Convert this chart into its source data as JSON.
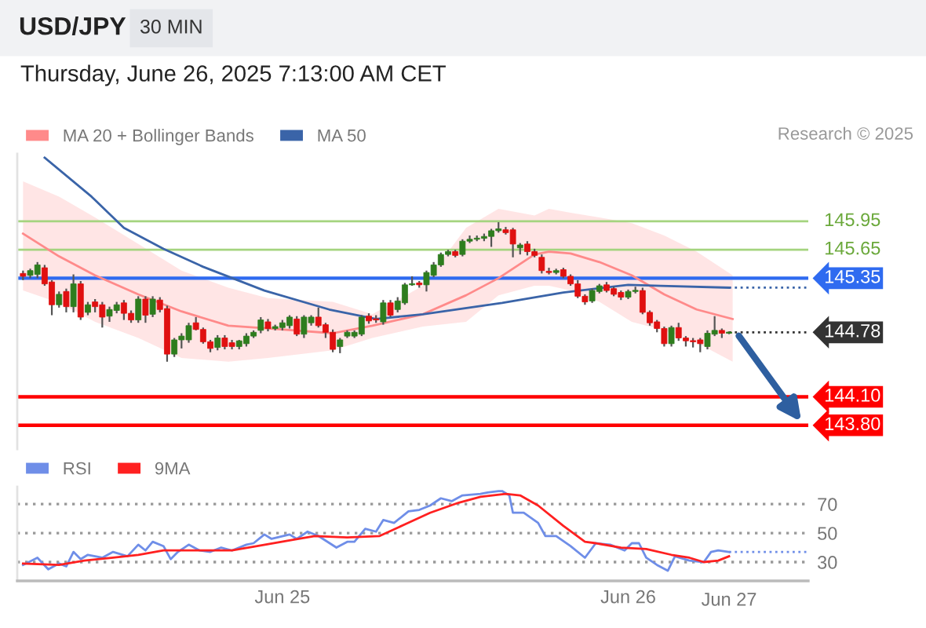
{
  "chart_data": [
    {
      "type": "candlestick",
      "title": "USD/JPY",
      "subtitle": "30 MIN",
      "annotations": [
        "Thursday, June 26, 2025 7:13:00 AM CET",
        "Research © 2025"
      ],
      "x": [
        "2025-06-24T06:00",
        "2025-06-24T06:30",
        "2025-06-24T07:00",
        "2025-06-24T07:30",
        "2025-06-24T08:00",
        "2025-06-24T08:30",
        "2025-06-24T09:00",
        "2025-06-24T09:30",
        "2025-06-24T10:00",
        "2025-06-24T10:30",
        "2025-06-24T11:00",
        "2025-06-24T11:30",
        "2025-06-24T12:00",
        "2025-06-24T12:30",
        "2025-06-24T13:00",
        "2025-06-24T13:30",
        "2025-06-24T14:00",
        "2025-06-24T14:30",
        "2025-06-24T15:00",
        "2025-06-24T15:30",
        "2025-06-24T16:00",
        "2025-06-24T16:30",
        "2025-06-24T17:00",
        "2025-06-24T17:30",
        "2025-06-24T18:00",
        "2025-06-24T18:30",
        "2025-06-24T19:00",
        "2025-06-24T19:30",
        "2025-06-24T20:00",
        "2025-06-24T20:30",
        "2025-06-24T21:00",
        "2025-06-24T21:30",
        "2025-06-24T22:00",
        "2025-06-24T22:30",
        "2025-06-24T23:00",
        "2025-06-24T23:30",
        "2025-06-25T00:00",
        "2025-06-25T00:30",
        "2025-06-25T01:00",
        "2025-06-25T01:30",
        "2025-06-25T02:00",
        "2025-06-25T02:30",
        "2025-06-25T03:00",
        "2025-06-25T03:30",
        "2025-06-25T04:00",
        "2025-06-25T04:30",
        "2025-06-25T05:00",
        "2025-06-25T05:30",
        "2025-06-25T06:00",
        "2025-06-25T06:30",
        "2025-06-25T07:00",
        "2025-06-25T07:30",
        "2025-06-25T08:00",
        "2025-06-25T08:30",
        "2025-06-25T09:00",
        "2025-06-25T09:30",
        "2025-06-25T10:00",
        "2025-06-25T10:30",
        "2025-06-25T11:00",
        "2025-06-25T11:30",
        "2025-06-25T12:00",
        "2025-06-25T12:30",
        "2025-06-25T13:00",
        "2025-06-25T13:30",
        "2025-06-25T14:00",
        "2025-06-25T14:30",
        "2025-06-25T15:00",
        "2025-06-25T15:30",
        "2025-06-25T16:00",
        "2025-06-25T16:30",
        "2025-06-25T17:00",
        "2025-06-25T17:30",
        "2025-06-25T18:00",
        "2025-06-25T18:30",
        "2025-06-25T19:00",
        "2025-06-25T19:30",
        "2025-06-25T20:00",
        "2025-06-25T20:30",
        "2025-06-25T21:00",
        "2025-06-25T21:30",
        "2025-06-25T22:00",
        "2025-06-25T22:30",
        "2025-06-25T23:00",
        "2025-06-25T23:30",
        "2025-06-26T00:00",
        "2025-06-26T00:30",
        "2025-06-26T01:00",
        "2025-06-26T01:30",
        "2025-06-26T02:00",
        "2025-06-26T02:30",
        "2025-06-26T03:00",
        "2025-06-26T03:30",
        "2025-06-26T04:00",
        "2025-06-26T04:30",
        "2025-06-26T05:00",
        "2025-06-26T05:30",
        "2025-06-26T06:00",
        "2025-06-26T06:30",
        "2025-06-26T07:00"
      ],
      "ohlc": [
        [
          145.4,
          145.43,
          145.33,
          145.37
        ],
        [
          145.38,
          145.45,
          145.35,
          145.43
        ],
        [
          145.39,
          145.52,
          145.35,
          145.49
        ],
        [
          145.46,
          145.49,
          145.27,
          145.29
        ],
        [
          145.31,
          145.33,
          144.96,
          145.07
        ],
        [
          145.07,
          145.21,
          145.04,
          145.18
        ],
        [
          145.21,
          145.24,
          144.99,
          145.05
        ],
        [
          145.05,
          145.39,
          144.99,
          145.29
        ],
        [
          145.29,
          145.32,
          144.91,
          144.94
        ],
        [
          144.99,
          145.1,
          144.96,
          145.07
        ],
        [
          145.1,
          145.13,
          144.99,
          145.05
        ],
        [
          145.07,
          145.1,
          144.83,
          144.94
        ],
        [
          144.95,
          145.05,
          144.89,
          145.02
        ],
        [
          145.01,
          145.1,
          144.98,
          145.07
        ],
        [
          145.09,
          145.12,
          144.91,
          144.98
        ],
        [
          144.98,
          145.01,
          144.88,
          144.91
        ],
        [
          144.91,
          145.16,
          144.88,
          145.13
        ],
        [
          145.13,
          145.16,
          144.88,
          144.96
        ],
        [
          144.97,
          145.16,
          144.94,
          145.13
        ],
        [
          145.12,
          145.15,
          144.99,
          145.02
        ],
        [
          145.03,
          145.06,
          144.47,
          144.55
        ],
        [
          144.55,
          144.72,
          144.52,
          144.7
        ],
        [
          144.7,
          144.77,
          144.61,
          144.74
        ],
        [
          144.7,
          144.88,
          144.67,
          144.85
        ],
        [
          144.88,
          144.94,
          144.8,
          144.81
        ],
        [
          144.81,
          144.83,
          144.66,
          144.68
        ],
        [
          144.68,
          144.7,
          144.57,
          144.61
        ],
        [
          144.62,
          144.75,
          144.59,
          144.72
        ],
        [
          144.72,
          144.75,
          144.6,
          144.63
        ],
        [
          144.67,
          144.7,
          144.6,
          144.63
        ],
        [
          144.63,
          144.7,
          144.6,
          144.69
        ],
        [
          144.66,
          144.77,
          144.63,
          144.74
        ],
        [
          144.74,
          144.8,
          144.72,
          144.78
        ],
        [
          144.8,
          144.94,
          144.77,
          144.91
        ],
        [
          144.89,
          144.92,
          144.79,
          144.82
        ],
        [
          144.82,
          144.86,
          144.8,
          144.84
        ],
        [
          144.83,
          144.91,
          144.8,
          144.88
        ],
        [
          144.85,
          144.96,
          144.82,
          144.94
        ],
        [
          144.92,
          144.95,
          144.74,
          144.76
        ],
        [
          144.76,
          144.96,
          144.72,
          144.94
        ],
        [
          144.88,
          144.96,
          144.85,
          144.94
        ],
        [
          144.94,
          145.04,
          144.83,
          144.85
        ],
        [
          144.86,
          144.88,
          144.72,
          144.78
        ],
        [
          144.78,
          144.81,
          144.57,
          144.6
        ],
        [
          144.63,
          144.72,
          144.56,
          144.7
        ],
        [
          144.74,
          144.8,
          144.72,
          144.78
        ],
        [
          144.74,
          144.8,
          144.72,
          144.78
        ],
        [
          144.76,
          144.96,
          144.74,
          144.94
        ],
        [
          144.95,
          144.98,
          144.87,
          144.9
        ],
        [
          144.92,
          144.96,
          144.88,
          144.91
        ],
        [
          144.89,
          145.12,
          144.86,
          145.09
        ],
        [
          145.09,
          145.12,
          144.94,
          144.96
        ],
        [
          145.02,
          145.15,
          144.99,
          145.11
        ],
        [
          145.09,
          145.3,
          145.07,
          145.28
        ],
        [
          145.28,
          145.37,
          145.27,
          145.29
        ],
        [
          145.3,
          145.32,
          145.25,
          145.28
        ],
        [
          145.28,
          145.43,
          145.21,
          145.41
        ],
        [
          145.38,
          145.52,
          145.36,
          145.49
        ],
        [
          145.49,
          145.62,
          145.47,
          145.6
        ],
        [
          145.6,
          145.65,
          145.58,
          145.63
        ],
        [
          145.63,
          145.65,
          145.57,
          145.59
        ],
        [
          145.6,
          145.76,
          145.58,
          145.74
        ],
        [
          145.74,
          145.8,
          145.72,
          145.76
        ],
        [
          145.76,
          145.8,
          145.74,
          145.77
        ],
        [
          145.77,
          145.82,
          145.74,
          145.79
        ],
        [
          145.79,
          145.87,
          145.68,
          145.85
        ],
        [
          145.85,
          145.94,
          145.83,
          145.87
        ],
        [
          145.86,
          145.89,
          145.81,
          145.83
        ],
        [
          145.86,
          145.88,
          145.57,
          145.71
        ],
        [
          145.67,
          145.72,
          145.6,
          145.7
        ],
        [
          145.71,
          145.74,
          145.59,
          145.63
        ],
        [
          145.63,
          145.66,
          145.57,
          145.59
        ],
        [
          145.57,
          145.6,
          145.4,
          145.43
        ],
        [
          145.42,
          145.46,
          145.39,
          145.41
        ],
        [
          145.41,
          145.45,
          145.39,
          145.43
        ],
        [
          145.44,
          145.46,
          145.35,
          145.37
        ],
        [
          145.37,
          145.39,
          145.27,
          145.29
        ],
        [
          145.29,
          145.33,
          145.14,
          145.16
        ],
        [
          145.16,
          145.18,
          145.07,
          145.1
        ],
        [
          145.11,
          145.24,
          145.09,
          145.22
        ],
        [
          145.21,
          145.29,
          145.19,
          145.27
        ],
        [
          145.28,
          145.31,
          145.2,
          145.22
        ],
        [
          145.24,
          145.26,
          145.16,
          145.18
        ],
        [
          145.2,
          145.22,
          145.12,
          145.15
        ],
        [
          145.15,
          145.23,
          145.13,
          145.21
        ],
        [
          145.21,
          145.26,
          145.19,
          145.22
        ],
        [
          145.22,
          145.25,
          144.97,
          144.99
        ],
        [
          144.99,
          145.01,
          144.85,
          144.88
        ],
        [
          144.89,
          144.91,
          144.78,
          144.82
        ],
        [
          144.82,
          144.84,
          144.63,
          144.66
        ],
        [
          144.66,
          144.85,
          144.63,
          144.83
        ],
        [
          144.83,
          144.88,
          144.69,
          144.72
        ],
        [
          144.72,
          144.74,
          144.63,
          144.69
        ],
        [
          144.69,
          144.72,
          144.62,
          144.68
        ],
        [
          144.7,
          144.72,
          144.57,
          144.66
        ],
        [
          144.63,
          144.8,
          144.6,
          144.77
        ],
        [
          144.76,
          144.95,
          144.74,
          144.8
        ],
        [
          144.8,
          144.82,
          144.72,
          144.77
        ],
        [
          144.77,
          144.79,
          144.76,
          144.78
        ]
      ],
      "series": [
        {
          "name": "MA 20 + Bollinger Bands",
          "type": "line",
          "color": "#ff8a8a",
          "x": [
            "2025-06-24T06:00",
            "2025-06-24T08:30",
            "2025-06-24T11:00",
            "2025-06-24T14:00",
            "2025-06-24T17:00",
            "2025-06-24T20:15",
            "2025-06-24T23:00",
            "2025-06-25T03:30",
            "2025-06-25T06:15",
            "2025-06-25T09:45",
            "2025-06-25T12:45",
            "2025-06-25T15:00",
            "2025-06-25T17:30",
            "2025-06-25T18:30",
            "2025-06-25T20:00",
            "2025-06-25T22:00",
            "2025-06-26T00:15",
            "2025-06-26T02:30",
            "2025-06-26T04:45",
            "2025-06-26T07:15"
          ],
          "values": [
            145.82,
            145.58,
            145.38,
            145.18,
            145.0,
            144.85,
            144.82,
            144.77,
            144.85,
            144.97,
            145.17,
            145.35,
            145.6,
            145.63,
            145.61,
            145.52,
            145.38,
            145.18,
            145.02,
            144.92
          ],
          "upper": [
            146.37,
            146.21,
            145.99,
            145.71,
            145.43,
            145.25,
            145.14,
            145.1,
            144.97,
            145.27,
            145.88,
            146.08,
            146.01,
            146.08,
            146.04,
            145.99,
            145.93,
            145.8,
            145.63,
            145.38
          ],
          "lower": [
            145.22,
            145.09,
            144.89,
            144.72,
            144.51,
            144.47,
            144.51,
            144.59,
            144.72,
            144.84,
            144.89,
            145.17,
            145.27,
            145.27,
            145.22,
            145.1,
            144.89,
            144.8,
            144.67,
            144.47
          ]
        },
        {
          "name": "MA 50",
          "type": "line",
          "color": "#3a64a8",
          "x": [
            "2025-06-24T07:30",
            "2025-06-24T10:45",
            "2025-06-24T13:00",
            "2025-06-24T15:45",
            "2025-06-24T18:30",
            "2025-06-24T22:45",
            "2025-06-25T03:15",
            "2025-06-25T06:30",
            "2025-06-25T09:45",
            "2025-06-25T15:15",
            "2025-06-25T19:30",
            "2025-06-26T00:00",
            "2025-06-26T02:15",
            "2025-06-26T07:00"
          ],
          "values": [
            146.62,
            146.21,
            145.88,
            145.66,
            145.47,
            145.22,
            145.02,
            144.92,
            144.97,
            145.09,
            145.2,
            145.28,
            145.27,
            145.25
          ]
        }
      ],
      "ref_lines": [
        {
          "axis": "y",
          "value": 145.95,
          "label": "145.95",
          "color": "#a5d47f"
        },
        {
          "axis": "y",
          "value": 145.65,
          "label": "145.65",
          "color": "#a5d47f"
        },
        {
          "axis": "y",
          "value": 145.35,
          "label": "145.35",
          "color": "#2f6bf0"
        },
        {
          "axis": "y",
          "value": 145.25,
          "label": null,
          "color": "#3a64a8",
          "line_style": "dotted"
        },
        {
          "axis": "y",
          "value": 144.78,
          "label": "144.78",
          "color": "#333333",
          "line_style": "dotted"
        },
        {
          "axis": "y",
          "value": 144.1,
          "label": "144.10",
          "color": "#ff0000"
        },
        {
          "axis": "y",
          "value": 143.8,
          "label": "143.80",
          "color": "#ff0000"
        }
      ],
      "xlim": [
        "2025-06-24T05:36",
        "2025-06-26T12:30"
      ],
      "ylim": [
        143.55,
        146.66
      ],
      "legend": "top left"
    },
    {
      "type": "line",
      "series": [
        {
          "name": "RSI",
          "color": "#6f8ee8",
          "x": [
            "2025-06-24T06:00",
            "2025-06-24T07:00",
            "2025-06-24T07:45",
            "2025-06-24T08:30",
            "2025-06-24T09:00",
            "2025-06-24T09:30",
            "2025-06-24T10:00",
            "2025-06-24T10:30",
            "2025-06-24T11:30",
            "2025-06-24T12:15",
            "2025-06-24T13:15",
            "2025-06-24T14:00",
            "2025-06-24T14:30",
            "2025-06-24T15:00",
            "2025-06-24T15:45",
            "2025-06-24T16:15",
            "2025-06-24T16:45",
            "2025-06-24T17:30",
            "2025-06-24T18:15",
            "2025-06-24T19:00",
            "2025-06-24T19:45",
            "2025-06-24T20:30",
            "2025-06-24T21:30",
            "2025-06-24T22:00",
            "2025-06-24T22:45",
            "2025-06-24T23:15",
            "2025-06-25T00:30",
            "2025-06-25T01:00",
            "2025-06-25T01:45",
            "2025-06-25T02:30",
            "2025-06-25T03:45",
            "2025-06-25T04:30",
            "2025-06-25T05:00",
            "2025-06-25T05:45",
            "2025-06-25T06:30",
            "2025-06-25T07:00",
            "2025-06-25T07:45",
            "2025-06-25T08:45",
            "2025-06-25T09:30",
            "2025-06-25T10:15",
            "2025-06-25T11:00",
            "2025-06-25T11:45",
            "2025-06-25T12:30",
            "2025-06-25T13:45",
            "2025-06-25T14:15",
            "2025-06-25T15:00",
            "2025-06-25T15:15",
            "2025-06-25T15:45",
            "2025-06-25T16:00",
            "2025-06-25T16:45",
            "2025-06-25T17:45",
            "2025-06-25T18:15",
            "2025-06-25T19:00",
            "2025-06-25T20:00",
            "2025-06-25T21:00",
            "2025-06-25T21:45",
            "2025-06-25T22:45",
            "2025-06-25T23:45",
            "2025-06-26T00:15",
            "2025-06-26T00:45",
            "2025-06-26T01:15",
            "2025-06-26T02:00",
            "2025-06-26T02:45",
            "2025-06-26T03:15",
            "2025-06-26T04:15",
            "2025-06-26T05:15",
            "2025-06-26T05:45",
            "2025-06-26T06:15",
            "2025-06-26T07:00"
          ],
          "values": [
            28,
            33,
            25,
            29,
            27,
            37,
            32,
            35,
            33,
            37,
            34,
            42,
            38,
            44,
            41,
            32,
            37,
            42,
            38,
            37,
            40,
            38,
            42,
            43,
            49,
            46,
            49,
            46,
            51,
            48,
            40,
            44,
            44,
            53,
            51,
            59,
            57,
            65,
            66,
            69,
            74,
            72,
            76,
            77,
            78,
            79,
            79,
            76,
            64,
            64,
            57,
            48,
            48,
            41,
            33,
            43,
            42,
            38,
            43,
            43,
            33,
            28,
            24,
            34,
            31,
            30,
            37,
            38,
            37
          ]
        },
        {
          "name": "9MA",
          "color": "#ff2020",
          "x": [
            "2025-06-24T06:00",
            "2025-06-24T08:30",
            "2025-06-24T10:15",
            "2025-06-24T12:15",
            "2025-06-24T14:00",
            "2025-06-24T15:45",
            "2025-06-24T17:45",
            "2025-06-24T20:30",
            "2025-06-24T22:15",
            "2025-06-25T00:30",
            "2025-06-25T02:15",
            "2025-06-25T04:30",
            "2025-06-25T06:45",
            "2025-06-25T08:30",
            "2025-06-25T10:15",
            "2025-06-25T12:15",
            "2025-06-25T13:45",
            "2025-06-25T15:30",
            "2025-06-25T16:30",
            "2025-06-25T17:45",
            "2025-06-25T19:30",
            "2025-06-25T21:00",
            "2025-06-25T21:45",
            "2025-06-25T23:30",
            "2025-06-26T01:15",
            "2025-06-26T03:00",
            "2025-06-26T04:15",
            "2025-06-26T05:15",
            "2025-06-26T06:15",
            "2025-06-26T07:00"
          ],
          "values": [
            29,
            28,
            31,
            33,
            35,
            38,
            38,
            38,
            41,
            45,
            48,
            47,
            48,
            56,
            64,
            71,
            75,
            77,
            76,
            69,
            55,
            44,
            43,
            40,
            39,
            35,
            33,
            30,
            31,
            34
          ]
        },
        {
          "color": "#6f8ee8",
          "line_style": "dotted",
          "x": [
            "2025-06-26T07:00",
            "2025-06-26T12:30"
          ],
          "values": [
            37,
            37
          ]
        }
      ],
      "xlim": [
        "2025-06-24T05:36",
        "2025-06-26T12:30"
      ],
      "ylim": [
        17,
        82
      ],
      "xticks": [
        {
          "value": "2025-06-25",
          "label": "Jun 25"
        },
        {
          "value": "2025-06-26",
          "label": "Jun 26"
        }
      ],
      "annotations": [
        "Jun 27"
      ],
      "yticks": [
        30,
        50,
        70
      ],
      "grid": "y",
      "legend": "top left"
    }
  ]
}
